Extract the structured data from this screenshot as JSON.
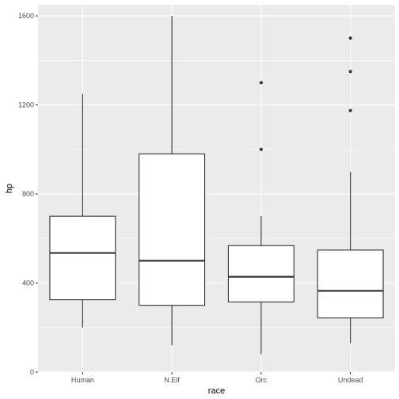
{
  "chart_data": {
    "type": "boxplot",
    "xlabel": "race",
    "ylabel": "hp",
    "categories": [
      "Human",
      "N.Elf",
      "Orc",
      "Undead"
    ],
    "ylim": [
      0,
      1650
    ],
    "yticks": [
      0,
      400,
      800,
      1200,
      1600
    ],
    "grid": true,
    "boxes": [
      {
        "category": "Human",
        "whisker_low": 200,
        "q1": 325,
        "median": 535,
        "q3": 700,
        "whisker_high": 1250,
        "outliers": []
      },
      {
        "category": "N.Elf",
        "whisker_low": 120,
        "q1": 300,
        "median": 500,
        "q3": 980,
        "whisker_high": 1600,
        "outliers": []
      },
      {
        "category": "Orc",
        "whisker_low": 80,
        "q1": 315,
        "median": 428,
        "q3": 568,
        "whisker_high": 700,
        "outliers": [
          1000,
          1300
        ]
      },
      {
        "category": "Undead",
        "whisker_low": 130,
        "q1": 243,
        "median": 365,
        "q3": 548,
        "whisker_high": 900,
        "outliers": [
          1175,
          1350,
          1500
        ]
      }
    ],
    "colors": {
      "panel_background": "#ebebeb",
      "grid": "#ffffff",
      "box_fill": "#ffffff",
      "box_stroke": "#333333"
    }
  }
}
